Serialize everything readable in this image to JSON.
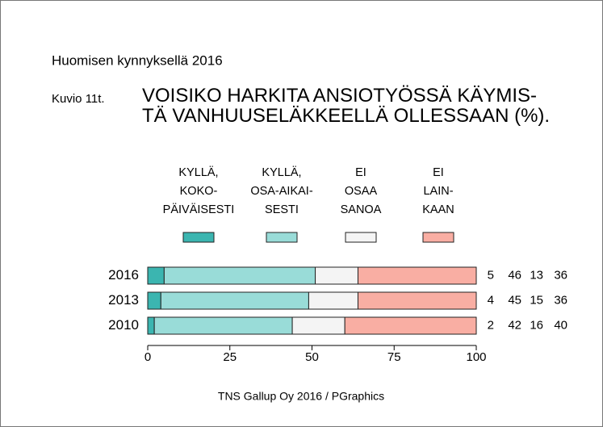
{
  "chart_data": {
    "type": "bar",
    "orientation": "horizontal",
    "stacked": true,
    "header": "Huomisen kynnyksellä 2016",
    "figure_label": "Kuvio 11t.",
    "title": "VOISIKO HARKITA ANSIOTYÖSSÄ KÄYMIS-\nTÄ VANHUUSELÄKKEELLÄ OLLESSAAN (%).",
    "source": "TNS Gallup Oy 2016 / PGraphics",
    "categories": [
      "2016",
      "2013",
      "2010"
    ],
    "series": [
      {
        "name": "KYLLÄ,\nKOKO-\nPÄIVÄISESTI",
        "color": "#3bb5b0",
        "values": [
          5,
          4,
          2
        ]
      },
      {
        "name": "KYLLÄ,\nOSA-AIKAI-\nSESTI",
        "color": "#99dcd8",
        "values": [
          46,
          45,
          42
        ]
      },
      {
        "name": "EI\nOSAA\nSANOA",
        "color": "#f4f4f4",
        "values": [
          13,
          15,
          16
        ]
      },
      {
        "name": "EI\nLAIN-\nKAAN",
        "color": "#f9aea3",
        "values": [
          36,
          36,
          40
        ]
      }
    ],
    "xlim": [
      0,
      100
    ],
    "xticks": [
      0,
      25,
      50,
      75,
      100
    ],
    "legend": "top"
  }
}
